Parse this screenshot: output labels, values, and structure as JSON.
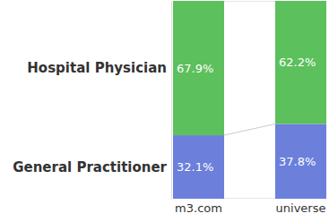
{
  "chart_data": {
    "type": "bar",
    "stacked": true,
    "data_labels": true,
    "tick_labels": "x",
    "categories": [
      "m3.com",
      "universe"
    ],
    "series": [
      {
        "name": "General Practitioner",
        "color": "#6b7fdb",
        "values": [
          32.1,
          37.8
        ],
        "value_labels": [
          "32.1%",
          "37.8%"
        ]
      },
      {
        "name": "Hospital Physician",
        "color": "#5cc05c",
        "values": [
          67.9,
          62.2
        ],
        "value_labels": [
          "67.9%",
          "62.2%"
        ]
      }
    ],
    "ylim": [
      0,
      100
    ]
  }
}
